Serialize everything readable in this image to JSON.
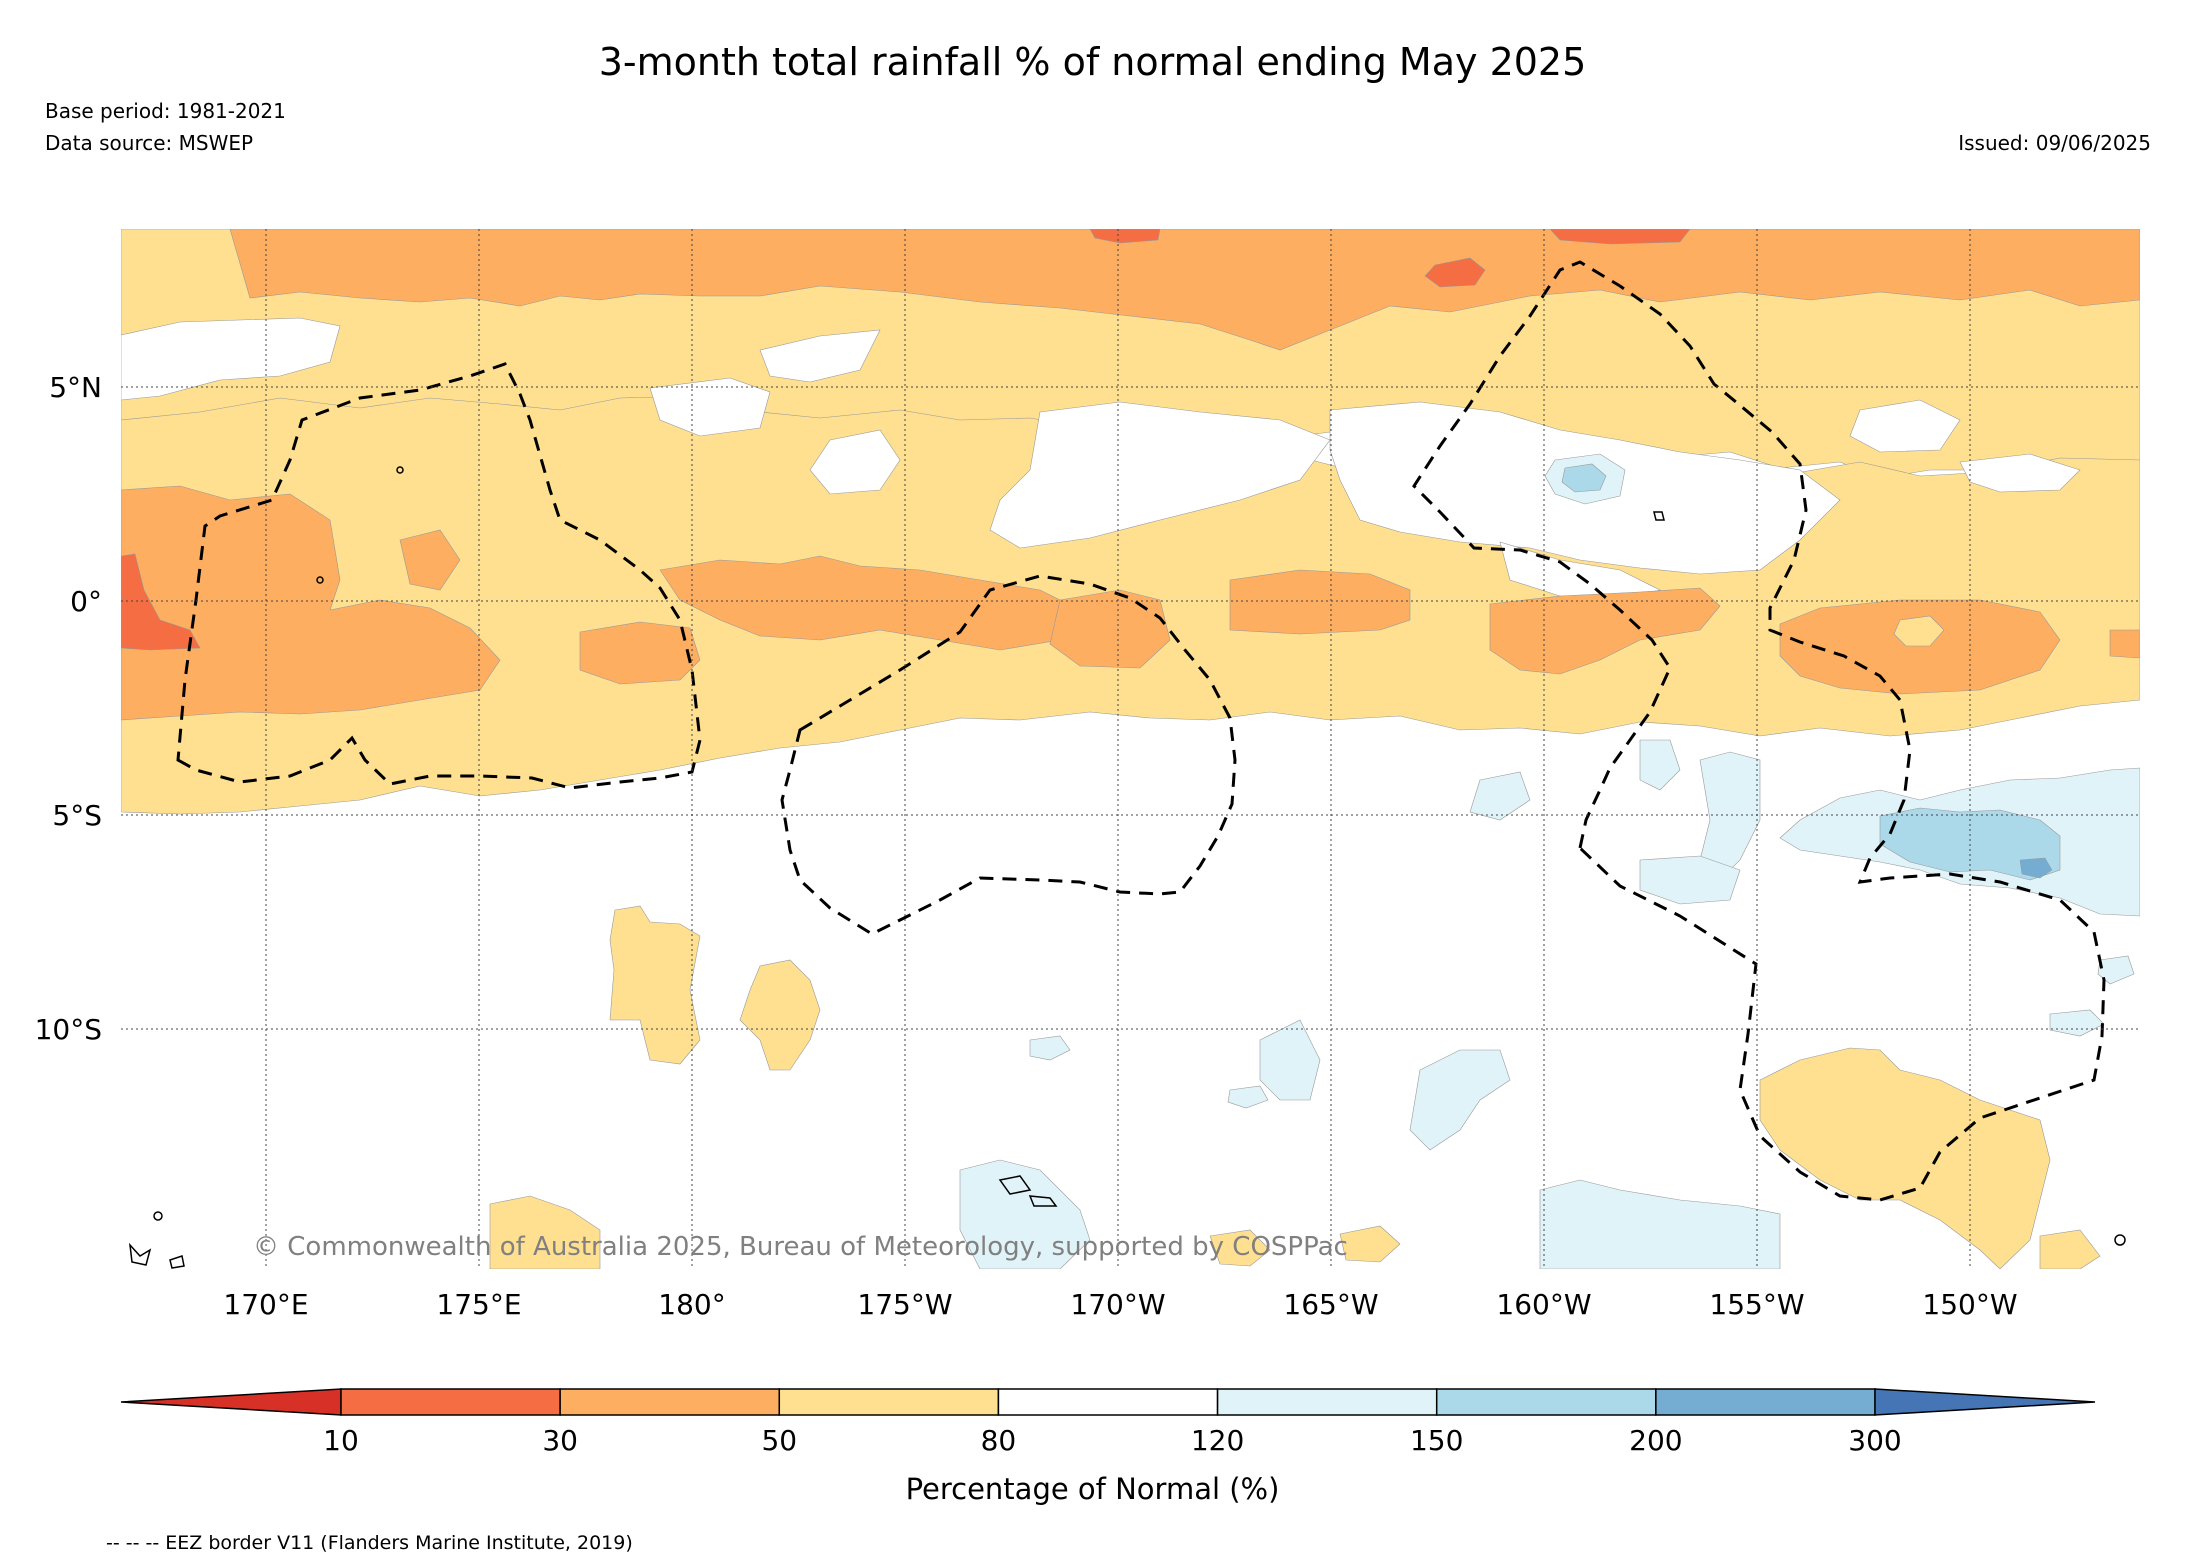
{
  "title": "3-month total rainfall % of normal ending May 2025",
  "base_period": "Base period: 1981-2021",
  "data_source": "Data source: MSWEP",
  "issued": "Issued: 09/06/2025",
  "credit": "© Commonwealth of Australia 2025, Bureau of Meteorology, supported by COSPPac",
  "footnote": "-- -- -- EEZ border V11 (Flanders Marine Institute, 2019)",
  "map": {
    "lon_labels": [
      "170°E",
      "175°E",
      "180°",
      "175°W",
      "170°W",
      "165°W",
      "160°W",
      "155°W",
      "150°W"
    ],
    "lat_labels": [
      "5°N",
      "0°",
      "5°S",
      "10°S"
    ]
  },
  "colorbar": {
    "label": "Percentage of Normal (%)",
    "ticks": [
      "10",
      "30",
      "50",
      "80",
      "120",
      "150",
      "200",
      "300"
    ],
    "bins": [
      {
        "range": "<10",
        "color": "#d73027"
      },
      {
        "range": "10-30",
        "color": "#f46d43"
      },
      {
        "range": "30-50",
        "color": "#fdae61"
      },
      {
        "range": "50-80",
        "color": "#fee090"
      },
      {
        "range": "80-120",
        "color": "#ffffff"
      },
      {
        "range": "120-150",
        "color": "#e0f3f8"
      },
      {
        "range": "150-200",
        "color": "#abd9e9"
      },
      {
        "range": "200-300",
        "color": "#74add1"
      },
      {
        "range": ">300",
        "color": "#4575b4"
      }
    ]
  },
  "colors": {
    "very_dry": "#f46d43",
    "dry": "#fdae61",
    "below": "#fee090",
    "normal": "#ffffff",
    "above": "#e0f3f8",
    "wet": "#abd9e9"
  }
}
